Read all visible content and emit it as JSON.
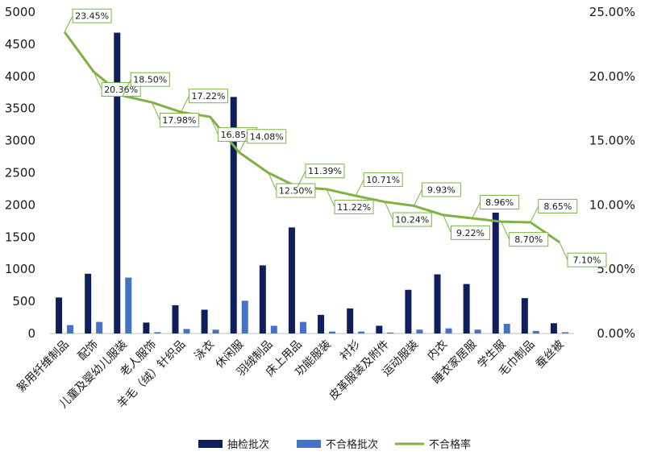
{
  "chart_data": {
    "type": "bar",
    "title": "",
    "xlabel": "",
    "ylabel": "",
    "categories": [
      "絮用纤维制品",
      "配饰",
      "儿童及婴幼儿服装",
      "老人服饰",
      "羊毛（绒）针织品",
      "泳衣",
      "休闲服",
      "羽绒制品",
      "床上用品",
      "功能服装",
      "衬衫",
      "皮革服装及附件",
      "运动服装",
      "内衣",
      "睡衣家居服",
      "学生服",
      "毛巾制品",
      "蚕丝被"
    ],
    "series": [
      {
        "name": "抽检批次",
        "axis": "left",
        "type": "bar",
        "color": "#0f1f5c",
        "values": [
          560,
          930,
          4680,
          170,
          440,
          370,
          3680,
          1060,
          1650,
          290,
          390,
          120,
          680,
          920,
          770,
          1880,
          550,
          160
        ]
      },
      {
        "name": "不合格批次",
        "axis": "left",
        "type": "bar",
        "color": "#4472c4",
        "values": [
          130,
          180,
          870,
          20,
          70,
          60,
          510,
          120,
          180,
          30,
          30,
          15,
          60,
          80,
          60,
          150,
          40,
          20
        ]
      },
      {
        "name": "不合格率",
        "axis": "right",
        "type": "line",
        "color": "#7cb342",
        "values": [
          23.45,
          20.36,
          18.5,
          17.98,
          17.22,
          16.85,
          14.08,
          12.5,
          11.39,
          11.22,
          10.71,
          10.24,
          9.93,
          9.22,
          8.96,
          8.7,
          8.65,
          7.1
        ],
        "labels": [
          "23.45%",
          "20.36%",
          "18.50%",
          "17.98%",
          "17.22%",
          "16.85%",
          "14.08%",
          "12.50%",
          "11.39%",
          "11.22%",
          "10.71%",
          "10.24%",
          "9.93%",
          "9.22%",
          "8.96%",
          "8.70%",
          "8.65%",
          "7.10%"
        ]
      }
    ],
    "y_left": {
      "range": [
        0,
        5000
      ],
      "ticks": [
        "0",
        "500",
        "1000",
        "1500",
        "2000",
        "2500",
        "3000",
        "3500",
        "4000",
        "4500",
        "5000"
      ]
    },
    "y_right": {
      "range": [
        0,
        25
      ],
      "ticks": [
        "0.00%",
        "5.00%",
        "10.00%",
        "15.00%",
        "20.00%",
        "25.00%"
      ]
    },
    "grid": false,
    "legend": "bottom"
  }
}
